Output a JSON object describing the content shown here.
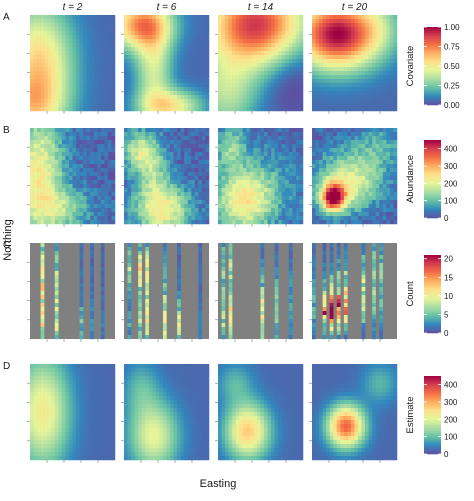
{
  "figure": {
    "x_axis_label": "Easting",
    "y_axis_label": "Northing"
  },
  "chart_data": {
    "type": "heatmap",
    "columns": [
      {
        "label": "t = 2",
        "t": 2
      },
      {
        "label": "t = 6",
        "t": 6
      },
      {
        "label": "t = 14",
        "t": 14
      },
      {
        "label": "t = 20",
        "t": 20
      }
    ],
    "rows": [
      {
        "id": "A",
        "legend_title": "Covariate",
        "ticks": [
          "1.00",
          "0.75",
          "0.50",
          "0.25",
          "0.00"
        ],
        "range": [
          0,
          1
        ]
      },
      {
        "id": "B",
        "legend_title": "Abundance",
        "ticks": [
          "400",
          "300",
          "200",
          "100",
          "0"
        ],
        "range": [
          0,
          450
        ]
      },
      {
        "id": "C",
        "legend_title": "Count",
        "ticks": [
          "20",
          "15",
          "10",
          "5",
          "0"
        ],
        "range": [
          0,
          21
        ]
      },
      {
        "id": "D",
        "legend_title": "Estimate",
        "ticks": [
          "400",
          "300",
          "200",
          "100",
          "0"
        ],
        "range": [
          0,
          450
        ]
      }
    ],
    "colormap": [
      "#5e4fa2",
      "#3288bd",
      "#66c2a5",
      "#abdda4",
      "#e6f598",
      "#fee08b",
      "#fdae61",
      "#f46d43",
      "#d53e4f",
      "#9e0142"
    ],
    "grid": "off",
    "legend_placement": "right"
  }
}
